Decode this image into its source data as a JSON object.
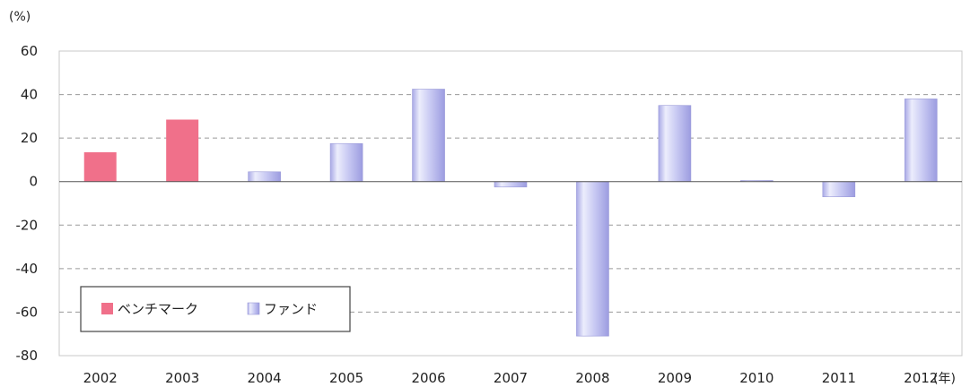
{
  "chart_data": {
    "type": "bar",
    "y_unit": "(%)",
    "x_unit": "(年)",
    "categories": [
      "2002",
      "2003",
      "2004",
      "2005",
      "2006",
      "2007",
      "2008",
      "2009",
      "2010",
      "2011",
      "2012"
    ],
    "series": [
      {
        "name": "ベンチマーク",
        "color": "#f0708a",
        "values": [
          13.5,
          28.5,
          null,
          null,
          null,
          null,
          null,
          null,
          null,
          null,
          null
        ]
      },
      {
        "name": "ファンド",
        "color": "#c8c8f2",
        "values": [
          null,
          null,
          4.5,
          17.5,
          42.5,
          -2.5,
          -71,
          35,
          0.5,
          -7,
          38
        ]
      }
    ],
    "ylim": [
      -80,
      60
    ],
    "yticks": [
      60,
      40,
      20,
      0,
      -20,
      -40,
      -60,
      -80
    ],
    "grid": "dashed-horizontal",
    "legend_position": "bottom-left"
  }
}
